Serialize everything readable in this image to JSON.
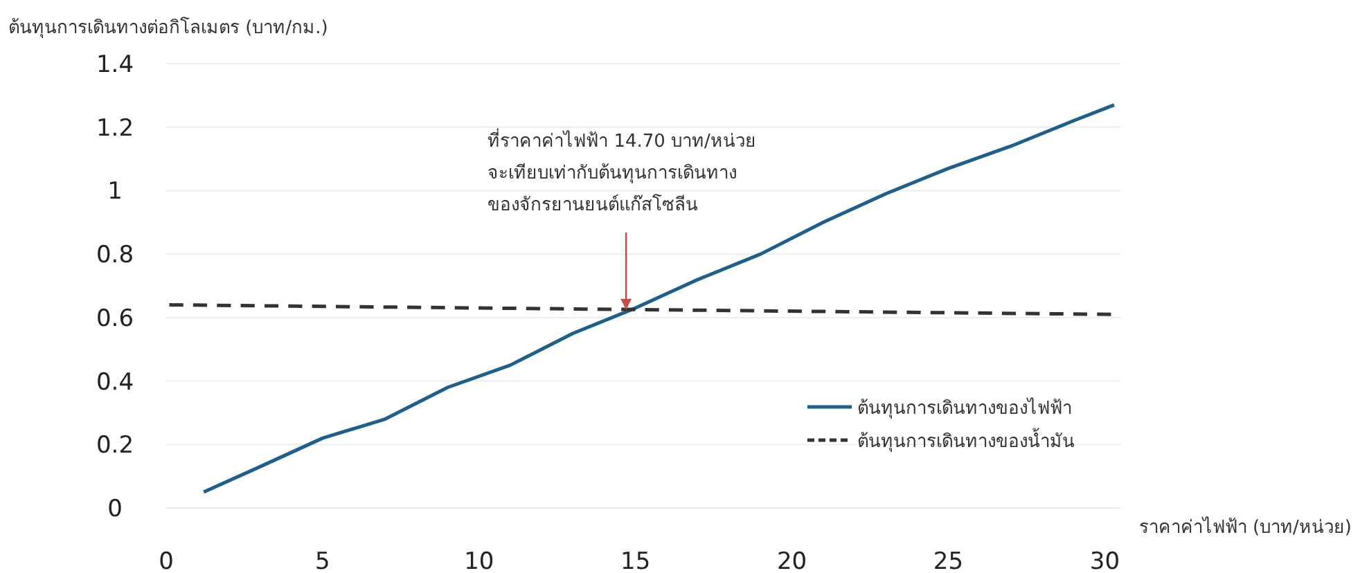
{
  "chart_data": {
    "type": "line",
    "ylabel": "ต้นทุนการเดินทางต่อกิโลเมตร (บาท/กม.)",
    "xlabel": "ราคาค่าไฟฟ้า (บาท/หน่วย)",
    "xlim": [
      0,
      30.5
    ],
    "ylim": [
      0,
      1.4
    ],
    "xticks": [
      0,
      5,
      10,
      15,
      20,
      25,
      30
    ],
    "yticks": [
      0,
      0.2,
      0.4,
      0.6,
      0.8,
      1,
      1.2,
      1.4
    ],
    "grid": "y",
    "legend": "bottom right",
    "series": [
      {
        "name": "ต้นทุนการเดินทางของไฟฟ้า",
        "color": "#1f5f8b",
        "line_style": "solid",
        "x": [
          1.2,
          3,
          5,
          7,
          9,
          11,
          13,
          15,
          17,
          19,
          21,
          23,
          25,
          27,
          29,
          30.3
        ],
        "values": [
          0.05,
          0.13,
          0.22,
          0.28,
          0.38,
          0.45,
          0.55,
          0.63,
          0.72,
          0.8,
          0.9,
          0.99,
          1.07,
          1.14,
          1.22,
          1.27
        ]
      },
      {
        "name": "ต้นทุนการเดินทางของน้ำมัน",
        "color": "#333333",
        "line_style": "dashed",
        "x": [
          0.1,
          30.2
        ],
        "values": [
          0.64,
          0.61
        ]
      }
    ],
    "annotations": [
      {
        "text": "ที่ราคาค่าไฟฟ้า 14.70 บาท/หน่วย\nจะเทียบเท่ากับต้นทุนการเดินทาง\nของจักรยานยนต์แก๊สโซลีน",
        "x": 14.7,
        "y": 0.62
      }
    ]
  }
}
